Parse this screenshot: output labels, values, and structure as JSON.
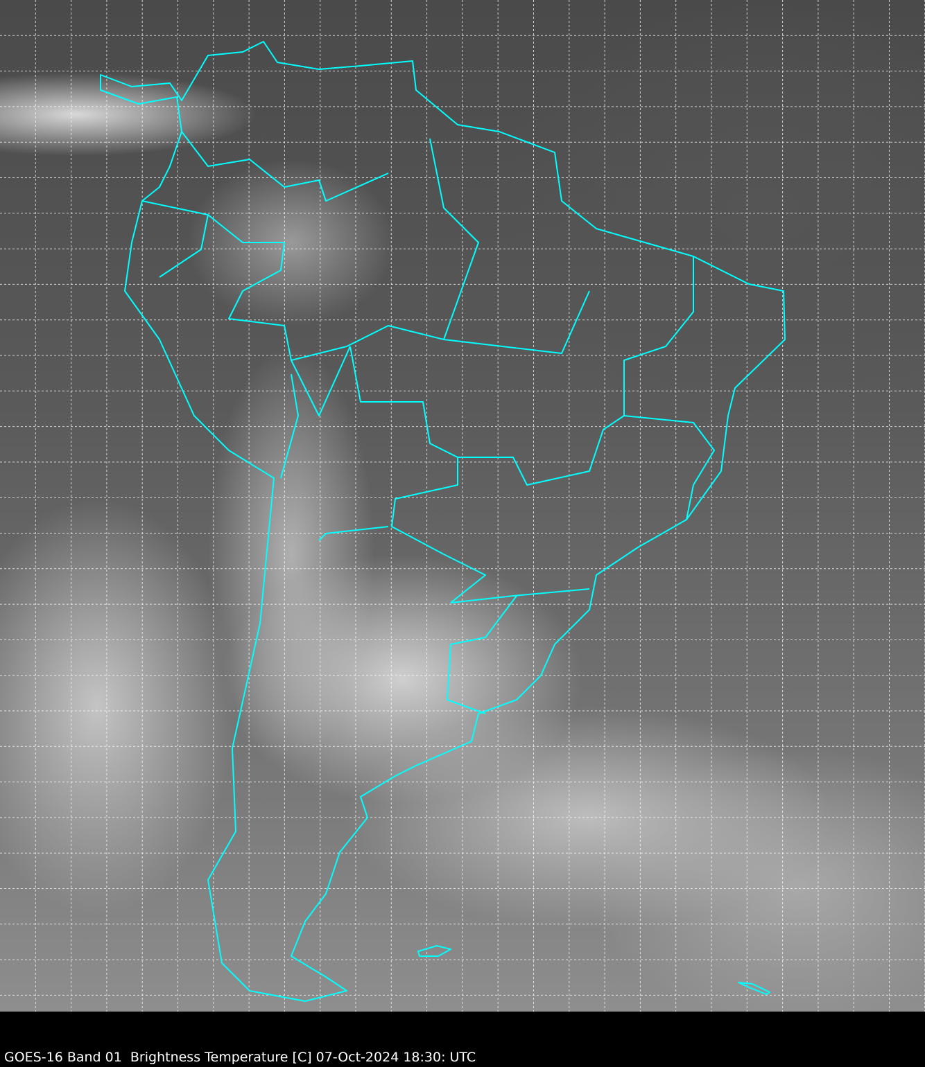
{
  "caption": "GOES-16 Band 01  Brightness Temperature [C] 07-Oct-2024 18:30: UTC",
  "colors": {
    "coastline": "#00ffff",
    "grid": "#ffffff",
    "background": "#000000"
  },
  "layers": [
    "satellite-imagery",
    "lat-lon-grid",
    "country-and-state-borders"
  ]
}
